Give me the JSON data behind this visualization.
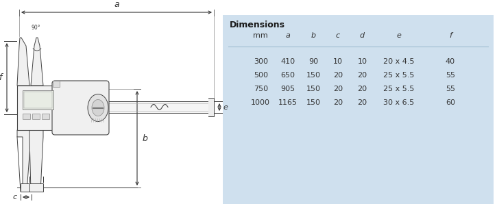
{
  "table_title": "Dimensions",
  "table_headers": [
    "mm",
    "a",
    "b",
    "c",
    "d",
    "e",
    "f"
  ],
  "table_rows": [
    [
      "300",
      "410",
      "90",
      "10",
      "10",
      "20 x 4.5",
      "40"
    ],
    [
      "500",
      "650",
      "150",
      "20",
      "20",
      "25 x 5.5",
      "55"
    ],
    [
      "750",
      "905",
      "150",
      "20",
      "20",
      "25 x 5.5",
      "55"
    ],
    [
      "1000",
      "1165",
      "150",
      "20",
      "20",
      "30 x 6.5",
      "60"
    ]
  ],
  "table_bg": "#cfe0ee",
  "table_border": "#a0bcd0",
  "bg_color": "#ffffff",
  "dc": "#444444",
  "lc": "#888888"
}
